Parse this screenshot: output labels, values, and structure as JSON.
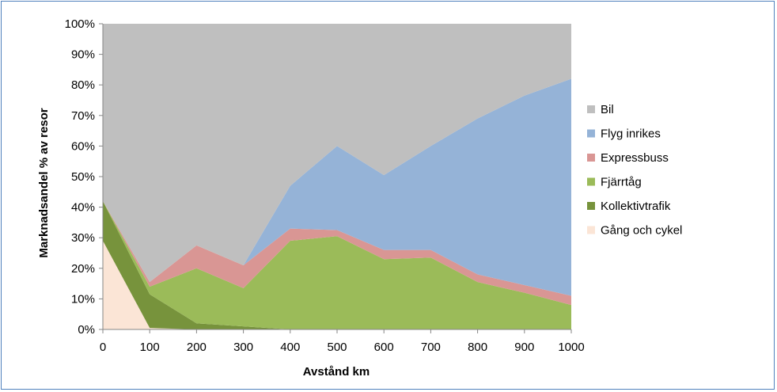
{
  "chart_data": {
    "type": "area",
    "stacked": true,
    "xlabel": "Avstånd km",
    "ylabel": "Marknadsandel % av resor",
    "x": [
      0,
      100,
      200,
      300,
      400,
      500,
      600,
      700,
      800,
      900,
      1000
    ],
    "xlim": [
      0,
      1000
    ],
    "ylim": [
      0,
      100
    ],
    "yticks": [
      "0%",
      "10%",
      "20%",
      "30%",
      "40%",
      "50%",
      "60%",
      "70%",
      "80%",
      "90%",
      "100%"
    ],
    "legend_position": "right",
    "series": [
      {
        "name": "Gång och cykel",
        "color": "#fbe5d6",
        "values": [
          29,
          0.5,
          0,
          0,
          0,
          0,
          0,
          0,
          0,
          0,
          0
        ]
      },
      {
        "name": "Kollektivtrafik",
        "color": "#77933c",
        "values": [
          13,
          11,
          2,
          1,
          0,
          0,
          0,
          0,
          0,
          0,
          0
        ]
      },
      {
        "name": "Fjärrtåg",
        "color": "#9bbb59",
        "values": [
          0,
          2.5,
          18,
          12.5,
          29,
          30.5,
          23,
          23.5,
          15.5,
          12,
          8
        ]
      },
      {
        "name": "Expressbuss",
        "color": "#d99694",
        "values": [
          0,
          1.5,
          7.5,
          7.5,
          4,
          2,
          3,
          2.5,
          2.5,
          2.5,
          3
        ]
      },
      {
        "name": "Flyg inrikes",
        "color": "#95b3d7",
        "values": [
          0,
          0,
          0,
          0,
          14,
          27.5,
          24.5,
          34,
          51,
          62,
          71
        ]
      },
      {
        "name": "Bil",
        "color": "#bfbfbf",
        "values": [
          58,
          84.5,
          72.5,
          79,
          53,
          40,
          49.5,
          40,
          31,
          23.5,
          18
        ]
      }
    ],
    "legend_order": [
      "Bil",
      "Flyg inrikes",
      "Expressbuss",
      "Fjärrtåg",
      "Kollektivtrafik",
      "Gång och cykel"
    ]
  }
}
